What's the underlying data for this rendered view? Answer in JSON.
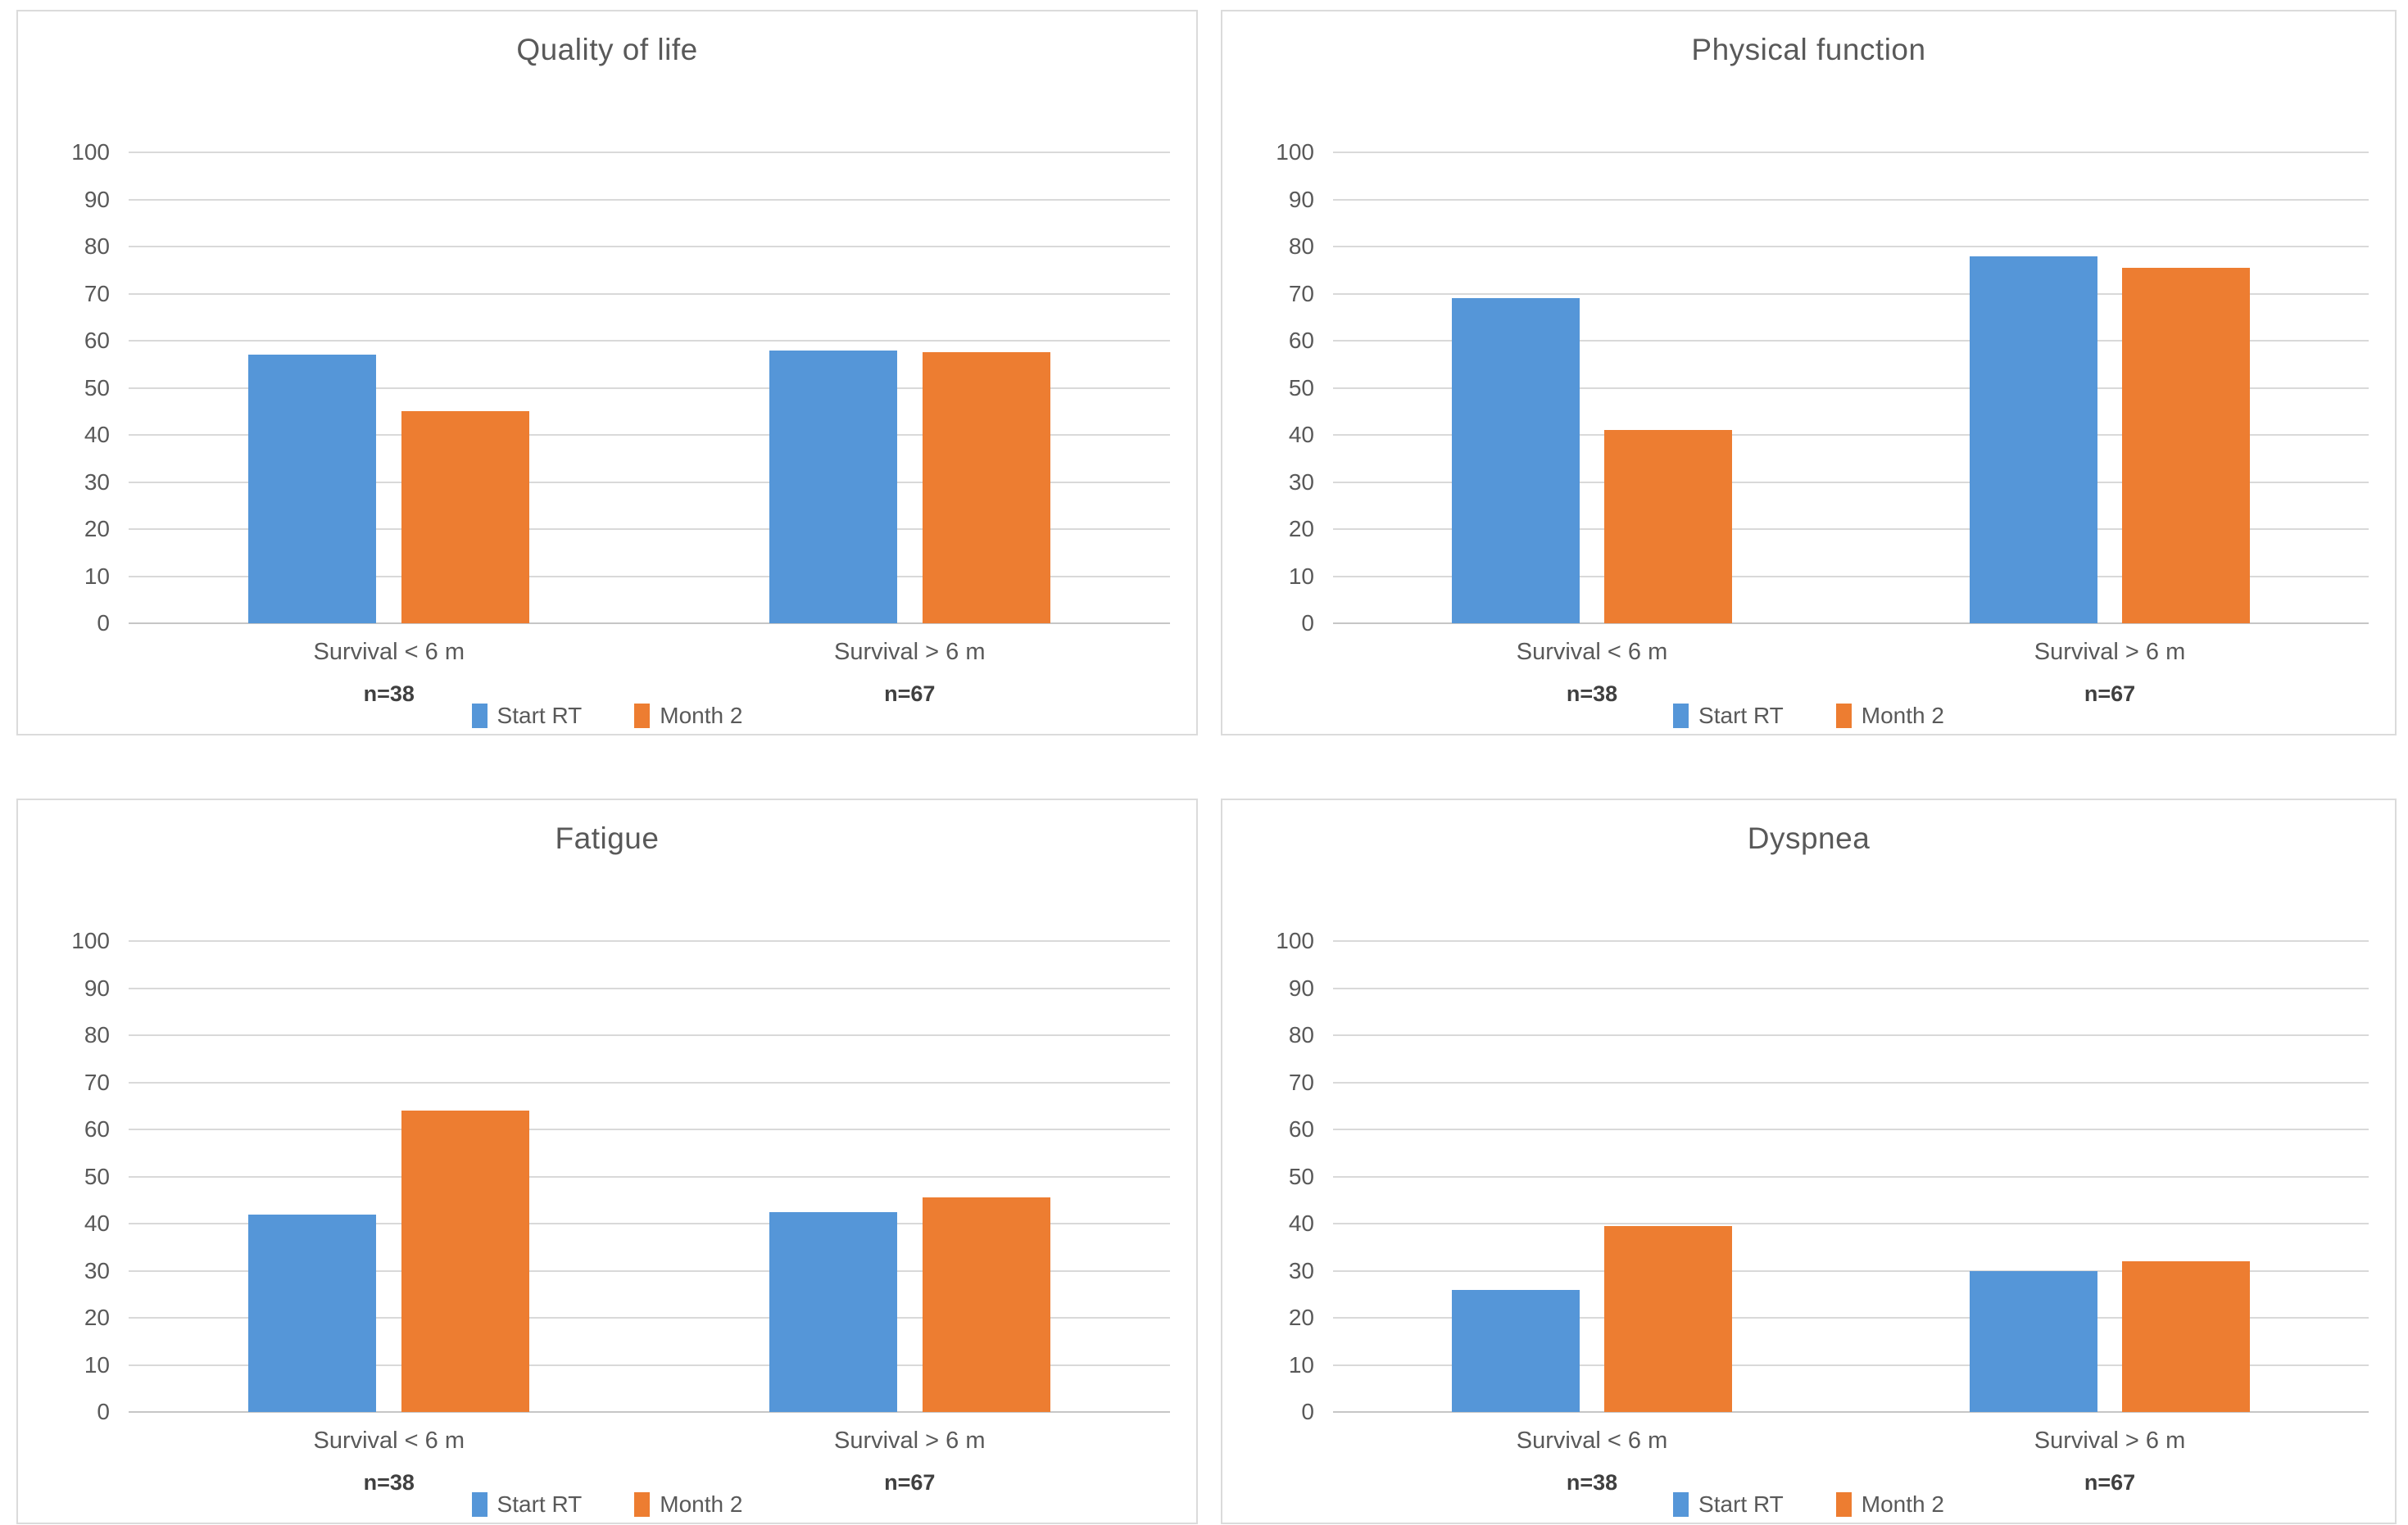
{
  "colors": {
    "start_rt": "#5596D8",
    "month2": "#ED7D31",
    "gridline": "#D9D9D9",
    "axis_text": "#595959",
    "title_text": "#595959",
    "panel_border": "#DBDBDB"
  },
  "legend": {
    "items": [
      {
        "label": "Start RT",
        "color": "#5596D8"
      },
      {
        "label": "Month 2",
        "color": "#ED7D31"
      }
    ]
  },
  "y_axis": {
    "min": 0,
    "max": 100,
    "step": 10,
    "ticks": [
      100,
      90,
      80,
      70,
      60,
      50,
      40,
      30,
      20,
      10,
      0
    ]
  },
  "chart_data": [
    {
      "type": "bar",
      "title": "Quality of life",
      "categories": [
        "Survival < 6 m",
        "Survival > 6 m"
      ],
      "category_n": [
        "n=38",
        "n=67"
      ],
      "series": [
        {
          "name": "Start RT",
          "color": "#5596D8",
          "values": [
            57,
            58
          ]
        },
        {
          "name": "Month 2",
          "color": "#ED7D31",
          "values": [
            45,
            57.5
          ]
        }
      ],
      "ylim": [
        0,
        100
      ],
      "grid": true,
      "legend_position": "bottom"
    },
    {
      "type": "bar",
      "title": "Physical function",
      "categories": [
        "Survival < 6 m",
        "Survival > 6 m"
      ],
      "category_n": [
        "n=38",
        "n=67"
      ],
      "series": [
        {
          "name": "Start RT",
          "color": "#5596D8",
          "values": [
            69,
            78
          ]
        },
        {
          "name": "Month 2",
          "color": "#ED7D31",
          "values": [
            41,
            75.5
          ]
        }
      ],
      "ylim": [
        0,
        100
      ],
      "grid": true,
      "legend_position": "bottom"
    },
    {
      "type": "bar",
      "title": "Fatigue",
      "categories": [
        "Survival < 6 m",
        "Survival > 6 m"
      ],
      "category_n": [
        "n=38",
        "n=67"
      ],
      "series": [
        {
          "name": "Start RT",
          "color": "#5596D8",
          "values": [
            42,
            42.5
          ]
        },
        {
          "name": "Month 2",
          "color": "#ED7D31",
          "values": [
            64,
            45.5
          ]
        }
      ],
      "ylim": [
        0,
        100
      ],
      "grid": true,
      "legend_position": "bottom"
    },
    {
      "type": "bar",
      "title": "Dyspnea",
      "categories": [
        "Survival < 6 m",
        "Survival > 6 m"
      ],
      "category_n": [
        "n=38",
        "n=67"
      ],
      "series": [
        {
          "name": "Start RT",
          "color": "#5596D8",
          "values": [
            26,
            30
          ]
        },
        {
          "name": "Month 2",
          "color": "#ED7D31",
          "values": [
            39.5,
            32
          ]
        }
      ],
      "ylim": [
        0,
        100
      ],
      "grid": true,
      "legend_position": "bottom"
    }
  ]
}
